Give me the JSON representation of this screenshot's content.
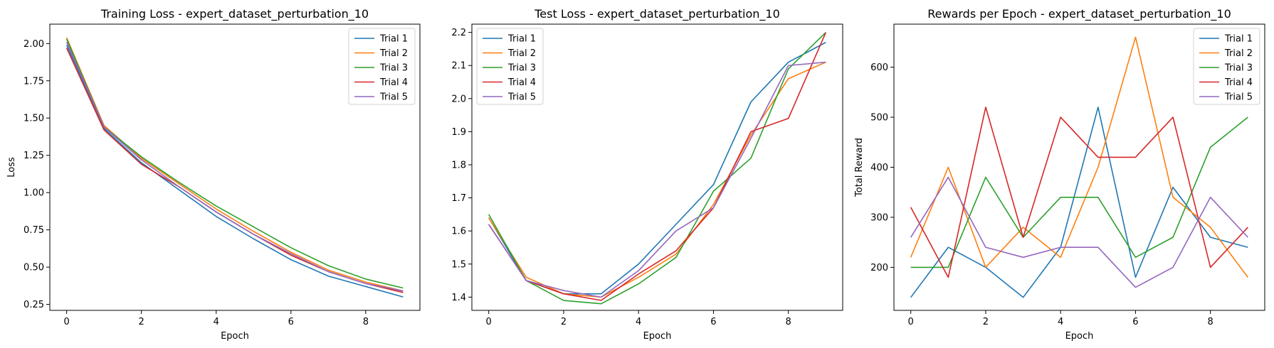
{
  "chart_data": [
    {
      "type": "line",
      "title": "Training Loss - expert_dataset_perturbation_10",
      "xlabel": "Epoch",
      "ylabel": "Loss",
      "xlim": [
        -0.45,
        9.45
      ],
      "ylim": [
        0.21,
        2.13
      ],
      "xticks": [
        0,
        2,
        4,
        6,
        8
      ],
      "yticks": [
        0.25,
        0.5,
        0.75,
        1.0,
        1.25,
        1.5,
        1.75,
        2.0
      ],
      "ytick_labels": [
        "0.25",
        "0.50",
        "0.75",
        "1.00",
        "1.25",
        "1.50",
        "1.75",
        "2.00"
      ],
      "xtick_labels": [
        "0",
        "2",
        "4",
        "6",
        "8"
      ],
      "legend_position": "top-right",
      "x": [
        0,
        1,
        2,
        3,
        4,
        5,
        6,
        7,
        8,
        9
      ],
      "series": [
        {
          "name": "Trial 1",
          "color": "#1f77b4",
          "values": [
            1.99,
            1.43,
            1.2,
            1.02,
            0.84,
            0.69,
            0.55,
            0.44,
            0.37,
            0.3
          ]
        },
        {
          "name": "Trial 2",
          "color": "#ff7f0e",
          "values": [
            2.04,
            1.45,
            1.23,
            1.06,
            0.89,
            0.74,
            0.6,
            0.48,
            0.4,
            0.34
          ]
        },
        {
          "name": "Trial 3",
          "color": "#2ca02c",
          "values": [
            2.03,
            1.44,
            1.24,
            1.07,
            0.91,
            0.77,
            0.63,
            0.51,
            0.42,
            0.36
          ]
        },
        {
          "name": "Trial 4",
          "color": "#d62728",
          "values": [
            1.97,
            1.42,
            1.19,
            1.04,
            0.87,
            0.72,
            0.58,
            0.47,
            0.39,
            0.33
          ]
        },
        {
          "name": "Trial 5",
          "color": "#9467bd",
          "values": [
            2.01,
            1.44,
            1.22,
            1.04,
            0.87,
            0.72,
            0.59,
            0.47,
            0.39,
            0.34
          ]
        }
      ]
    },
    {
      "type": "line",
      "title": "Test Loss - expert_dataset_perturbation_10",
      "xlabel": "Epoch",
      "ylabel": "",
      "xlim": [
        -0.45,
        9.45
      ],
      "ylim": [
        1.36,
        2.225
      ],
      "xticks": [
        0,
        2,
        4,
        6,
        8
      ],
      "yticks": [
        1.4,
        1.5,
        1.6,
        1.7,
        1.8,
        1.9,
        2.0,
        2.1,
        2.2
      ],
      "ytick_labels": [
        "1.4",
        "1.5",
        "1.6",
        "1.7",
        "1.8",
        "1.9",
        "2.0",
        "2.1",
        "2.2"
      ],
      "xtick_labels": [
        "0",
        "2",
        "4",
        "6",
        "8"
      ],
      "legend_position": "top-left",
      "x": [
        0,
        1,
        2,
        3,
        4,
        5,
        6,
        7,
        8,
        9
      ],
      "series": [
        {
          "name": "Trial 1",
          "color": "#1f77b4",
          "values": [
            1.64,
            1.45,
            1.41,
            1.41,
            1.5,
            1.62,
            1.74,
            1.99,
            2.11,
            2.17
          ]
        },
        {
          "name": "Trial 2",
          "color": "#ff7f0e",
          "values": [
            1.64,
            1.46,
            1.41,
            1.4,
            1.46,
            1.53,
            1.68,
            1.89,
            2.06,
            2.11
          ]
        },
        {
          "name": "Trial 3",
          "color": "#2ca02c",
          "values": [
            1.65,
            1.45,
            1.39,
            1.38,
            1.44,
            1.52,
            1.72,
            1.82,
            2.09,
            2.2
          ]
        },
        {
          "name": "Trial 4",
          "color": "#d62728",
          "values": [
            1.62,
            1.45,
            1.41,
            1.39,
            1.47,
            1.54,
            1.67,
            1.9,
            1.94,
            2.2
          ]
        },
        {
          "name": "Trial 5",
          "color": "#9467bd",
          "values": [
            1.62,
            1.45,
            1.42,
            1.4,
            1.48,
            1.6,
            1.67,
            1.88,
            2.1,
            2.11
          ]
        }
      ]
    },
    {
      "type": "line",
      "title": "Rewards per Epoch - expert_dataset_perturbation_10",
      "xlabel": "Epoch",
      "ylabel": "Total Reward",
      "xlim": [
        -0.45,
        9.45
      ],
      "ylim": [
        114,
        686
      ],
      "xticks": [
        0,
        2,
        4,
        6,
        8
      ],
      "yticks": [
        200,
        300,
        400,
        500,
        600
      ],
      "ytick_labels": [
        "200",
        "300",
        "400",
        "500",
        "600"
      ],
      "xtick_labels": [
        "0",
        "2",
        "4",
        "6",
        "8"
      ],
      "legend_position": "top-right",
      "x": [
        0,
        1,
        2,
        3,
        4,
        5,
        6,
        7,
        8,
        9
      ],
      "series": [
        {
          "name": "Trial 1",
          "color": "#1f77b4",
          "values": [
            140,
            240,
            200,
            140,
            240,
            520,
            180,
            360,
            260,
            240
          ]
        },
        {
          "name": "Trial 2",
          "color": "#ff7f0e",
          "values": [
            220,
            400,
            200,
            280,
            220,
            400,
            660,
            340,
            280,
            180
          ]
        },
        {
          "name": "Trial 3",
          "color": "#2ca02c",
          "values": [
            200,
            200,
            380,
            260,
            340,
            340,
            220,
            260,
            440,
            500
          ]
        },
        {
          "name": "Trial 4",
          "color": "#d62728",
          "values": [
            320,
            180,
            520,
            260,
            500,
            420,
            420,
            500,
            200,
            280
          ]
        },
        {
          "name": "Trial 5",
          "color": "#9467bd",
          "values": [
            260,
            380,
            240,
            220,
            240,
            240,
            160,
            200,
            340,
            260
          ]
        }
      ]
    }
  ]
}
